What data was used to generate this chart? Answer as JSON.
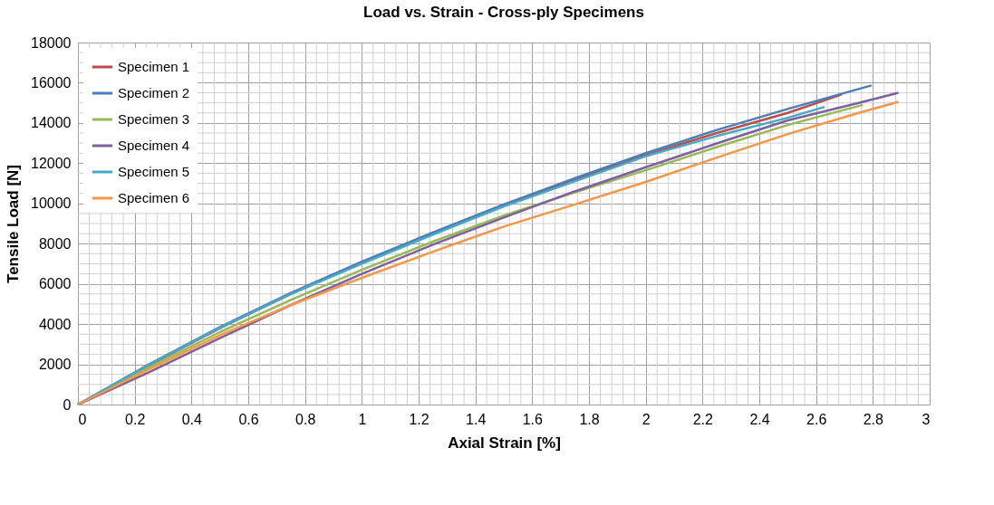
{
  "chart_data": {
    "type": "line",
    "title": "Load vs. Strain - Cross-ply Specimens",
    "xlabel": "Axial Strain [%]",
    "ylabel": "Tensile Load [N]",
    "xlim": [
      0,
      3
    ],
    "xticks": [
      0,
      0.2,
      0.4,
      0.6,
      0.8,
      1,
      1.2,
      1.4,
      1.6,
      1.8,
      2,
      2.2,
      2.4,
      2.6,
      2.8,
      3
    ],
    "ylim": [
      0,
      18000
    ],
    "yticks": [
      0,
      2000,
      4000,
      6000,
      8000,
      10000,
      12000,
      14000,
      16000,
      18000
    ],
    "grid": true,
    "legend": "top left",
    "marker": "none",
    "line_style": "solid",
    "series": [
      {
        "name": "Specimen 1",
        "color": "#be4b48",
        "x": [
          0,
          0.25,
          0.5,
          0.75,
          1,
          1.25,
          1.5,
          1.75,
          2,
          2.25,
          2.5,
          2.69
        ],
        "values": [
          0,
          1950,
          3800,
          5500,
          7050,
          8500,
          9900,
          11200,
          12400,
          13500,
          14500,
          15420
        ]
      },
      {
        "name": "Specimen 2",
        "color": "#4a7ebb",
        "x": [
          0,
          0.25,
          0.5,
          0.75,
          1,
          1.25,
          1.5,
          1.75,
          2,
          2.25,
          2.5,
          2.795
        ],
        "values": [
          0,
          2000,
          3850,
          5550,
          7100,
          8550,
          9950,
          11250,
          12500,
          13650,
          14700,
          15870
        ]
      },
      {
        "name": "Specimen 3",
        "color": "#98b954",
        "x": [
          0,
          0.25,
          0.5,
          0.75,
          1,
          1.25,
          1.5,
          1.75,
          2,
          2.25,
          2.5,
          2.765
        ],
        "values": [
          0,
          1850,
          3600,
          5200,
          6700,
          8100,
          9400,
          10550,
          11650,
          12800,
          13900,
          14900
        ]
      },
      {
        "name": "Specimen 4",
        "color": "#7d60a0",
        "x": [
          0,
          0.25,
          0.5,
          0.75,
          1,
          1.25,
          1.5,
          1.75,
          2,
          2.25,
          2.5,
          2.75,
          2.89
        ],
        "values": [
          0,
          1600,
          3300,
          4950,
          6500,
          7950,
          9300,
          10600,
          11800,
          12980,
          14130,
          15000,
          15500
        ]
      },
      {
        "name": "Specimen 5",
        "color": "#46aac5",
        "x": [
          0,
          0.25,
          0.5,
          0.75,
          1,
          1.25,
          1.5,
          1.75,
          2,
          2.25,
          2.5,
          2.63
        ],
        "values": [
          0,
          1980,
          3820,
          5500,
          7000,
          8450,
          9850,
          11100,
          12350,
          13350,
          14260,
          14800
        ]
      },
      {
        "name": "Specimen 6",
        "color": "#f79646",
        "x": [
          0,
          0.25,
          0.5,
          0.75,
          1,
          1.25,
          1.5,
          1.75,
          2,
          2.25,
          2.5,
          2.75,
          2.89
        ],
        "values": [
          0,
          1750,
          3450,
          4950,
          6300,
          7600,
          8850,
          9950,
          11070,
          12280,
          13450,
          14500,
          15050
        ]
      }
    ]
  }
}
